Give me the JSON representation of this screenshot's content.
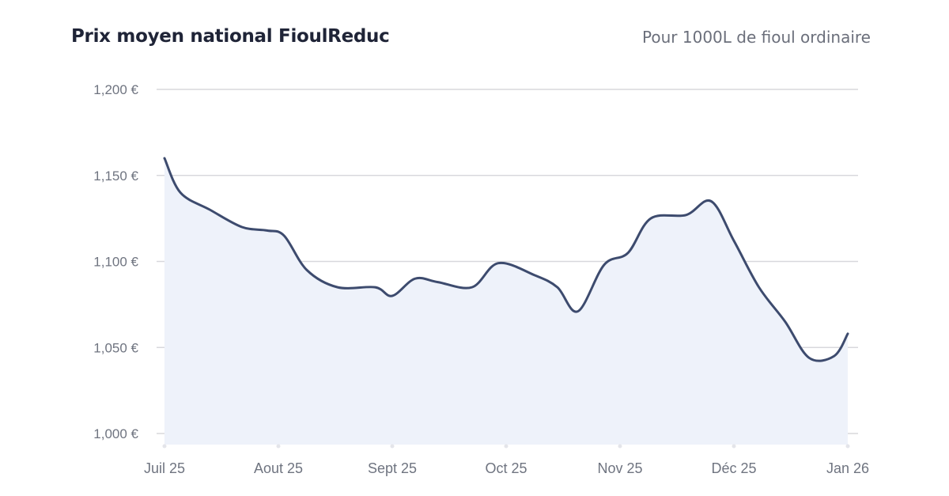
{
  "header": {
    "title": "Prix moyen national FioulReduc",
    "subtitle": "Pour 1000L de fioul ordinaire"
  },
  "colors": {
    "line": "#3d4b6e",
    "area": "#eef2fa",
    "grid": "#d8d8dc",
    "tick_text": "#6f7480",
    "title": "#1f2437"
  },
  "chart_data": {
    "type": "area",
    "title": "Prix moyen national FioulReduc",
    "subtitle": "Pour 1000L de fioul ordinaire",
    "xlabel": "",
    "ylabel": "",
    "grid": true,
    "ylim": [
      1000,
      1200
    ],
    "y_ticks": [
      1000,
      1050,
      1100,
      1150,
      1200
    ],
    "y_tick_labels": [
      "1,000 €",
      "1,050 €",
      "1,100 €",
      "1,150 €",
      "1,200 €"
    ],
    "x_tick_labels": [
      "Juil 25",
      "Aout 25",
      "Sept 25",
      "Oct 25",
      "Nov 25",
      "Déc 25",
      "Jan 26"
    ],
    "x_tick_positions": [
      0,
      1,
      2,
      3,
      4,
      5,
      6
    ],
    "series": [
      {
        "x": [
          0,
          0.14,
          0.4,
          0.68,
          0.9,
          1.05,
          1.25,
          1.52,
          1.85,
          2.0,
          2.2,
          2.4,
          2.7,
          2.93,
          3.25,
          3.45,
          3.63,
          3.86,
          4.07,
          4.27,
          4.58,
          4.8,
          5.0,
          5.22,
          5.45,
          5.66,
          5.88,
          6.0
        ],
        "values": [
          1160,
          1140,
          1130,
          1120,
          1118,
          1115,
          1095,
          1085,
          1085,
          1080,
          1090,
          1088,
          1085,
          1099,
          1092,
          1085,
          1071,
          1098,
          1105,
          1125,
          1127,
          1135,
          1112,
          1085,
          1065,
          1044,
          1045,
          1058
        ]
      }
    ]
  }
}
